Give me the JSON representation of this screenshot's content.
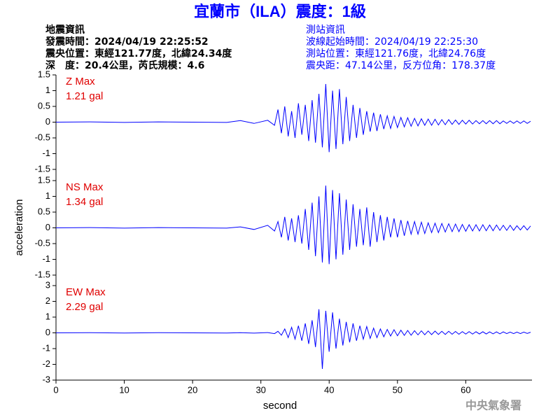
{
  "header": {
    "left": [
      "地震資訊",
      "發震時間：2024/04/19 22:25:52",
      "震央位置：東經121.77度，北緯24.34度",
      "深　度：20.4公里，芮氏規模：4.6"
    ],
    "right": [
      "測站資訊",
      "波線起始時間：2024/04/19 22:25:30",
      "測站位置：東經121.76度，北緯24.76度",
      "震央距：47.14公里，反方位角：178.37度"
    ]
  },
  "watermark": "中央氣象署",
  "chart_data": {
    "type": "line",
    "title": "宜蘭市（ILA）震度：1級",
    "xlabel": "second",
    "ylabel": "acceleration",
    "xlim": [
      0,
      69.7
    ],
    "xticks": [
      0,
      10,
      20,
      30,
      40,
      50,
      60
    ],
    "x": [
      0,
      5,
      10,
      15,
      20,
      25,
      27,
      29,
      31,
      32,
      32.5,
      33,
      33.5,
      34,
      34.5,
      35,
      35.5,
      36,
      36.5,
      37,
      37.5,
      38,
      38.5,
      39,
      39.5,
      40,
      40.5,
      41,
      41.5,
      42,
      42.5,
      43,
      43.5,
      44,
      44.5,
      45,
      45.5,
      46,
      46.5,
      47,
      47.5,
      48,
      48.5,
      49,
      49.5,
      50,
      50.5,
      51,
      51.5,
      52,
      52.5,
      53,
      53.5,
      54,
      54.5,
      55,
      55.5,
      56,
      56.5,
      57,
      57.5,
      58,
      58.5,
      59,
      59.5,
      60,
      60.5,
      61,
      61.5,
      62,
      62.5,
      63,
      63.5,
      64,
      64.5,
      65,
      65.5,
      66,
      66.5,
      67,
      67.5,
      68,
      68.5,
      69,
      69.5
    ],
    "series": [
      {
        "label": "Z Max",
        "max_label": "1.21 gal",
        "color": "#0000ff",
        "ylim": [
          -1.5,
          1.5
        ],
        "yticks": [
          -1.5,
          -1,
          -0.5,
          0,
          0.5,
          1,
          1.5
        ],
        "values": [
          0,
          0.01,
          -0.01,
          0.01,
          0,
          -0.01,
          0.05,
          -0.04,
          0.06,
          -0.1,
          0.4,
          -0.35,
          0.5,
          -0.45,
          0.35,
          -0.5,
          0.6,
          -0.4,
          0.55,
          -0.6,
          0.7,
          -0.65,
          0.9,
          -0.8,
          1.21,
          -0.95,
          1.0,
          -0.85,
          1.05,
          -0.7,
          0.8,
          -0.6,
          0.55,
          -0.5,
          0.45,
          -0.4,
          0.35,
          -0.3,
          0.3,
          -0.28,
          0.25,
          -0.22,
          0.2,
          -0.2,
          0.18,
          -0.17,
          0.15,
          -0.15,
          0.14,
          -0.13,
          0.12,
          -0.12,
          0.11,
          -0.1,
          0.1,
          -0.1,
          0.09,
          -0.09,
          0.08,
          -0.08,
          0.08,
          -0.07,
          0.07,
          -0.07,
          0.06,
          -0.06,
          0.06,
          -0.06,
          0.05,
          -0.05,
          0.05,
          -0.05,
          0.05,
          -0.05,
          0.05,
          -0.05,
          0.04,
          -0.04,
          0.04,
          -0.04,
          0.04,
          -0.04,
          0.04,
          -0.04,
          0.03
        ]
      },
      {
        "label": "NS Max",
        "max_label": "1.34 gal",
        "color": "#0000ff",
        "ylim": [
          -1.5,
          1.5
        ],
        "yticks": [
          -1.5,
          -1,
          -0.5,
          0,
          0.5,
          1,
          1.5
        ],
        "values": [
          0,
          0.01,
          -0.01,
          0.01,
          0,
          -0.01,
          0.03,
          -0.05,
          0.08,
          -0.1,
          0.2,
          -0.3,
          0.35,
          -0.4,
          0.3,
          -0.45,
          0.4,
          -0.5,
          0.6,
          -0.7,
          0.8,
          -0.9,
          1.0,
          -1.1,
          1.34,
          -1.15,
          1.2,
          -1.0,
          1.1,
          -0.85,
          0.9,
          -0.7,
          0.75,
          -0.6,
          0.6,
          -0.55,
          0.65,
          -0.6,
          0.5,
          -0.45,
          0.4,
          -0.4,
          0.35,
          -0.3,
          0.3,
          -0.3,
          0.25,
          -0.25,
          0.22,
          -0.2,
          0.2,
          -0.2,
          0.18,
          -0.18,
          0.16,
          -0.15,
          0.15,
          -0.15,
          0.14,
          -0.13,
          0.13,
          -0.12,
          0.12,
          -0.12,
          0.11,
          -0.11,
          0.1,
          -0.1,
          0.1,
          -0.1,
          0.1,
          -0.09,
          0.09,
          -0.09,
          0.09,
          -0.08,
          0.08,
          -0.08,
          0.08,
          -0.08,
          0.07,
          -0.07,
          0.07,
          -0.07,
          0.06
        ]
      },
      {
        "label": "EW Max",
        "max_label": "2.29 gal",
        "color": "#0000ff",
        "ylim": [
          -3,
          3
        ],
        "yticks": [
          -3,
          -2,
          -1,
          0,
          1,
          2,
          3
        ],
        "values": [
          0,
          0.01,
          -0.01,
          0.01,
          0,
          -0.01,
          0.01,
          -0.02,
          0.02,
          -0.05,
          0.1,
          -0.15,
          0.25,
          -0.3,
          0.35,
          -0.4,
          0.45,
          -0.5,
          0.6,
          -0.7,
          0.8,
          -0.9,
          1.5,
          -2.29,
          1.4,
          -1.2,
          1.3,
          -1.0,
          0.9,
          -0.8,
          0.7,
          -0.6,
          0.6,
          -0.5,
          0.45,
          -0.4,
          0.4,
          -0.35,
          0.3,
          -0.3,
          0.25,
          -0.25,
          0.22,
          -0.2,
          0.2,
          -0.18,
          0.17,
          -0.16,
          0.15,
          -0.15,
          0.14,
          -0.13,
          0.13,
          -0.12,
          0.12,
          -0.11,
          0.11,
          -0.1,
          0.1,
          -0.1,
          0.1,
          -0.09,
          0.09,
          -0.09,
          0.08,
          -0.08,
          0.08,
          -0.08,
          0.07,
          -0.07,
          0.07,
          -0.07,
          0.06,
          -0.06,
          0.06,
          -0.06,
          0.06,
          -0.05,
          0.05,
          -0.05,
          0.05,
          -0.05,
          0.05,
          -0.04,
          0.04
        ]
      }
    ]
  }
}
